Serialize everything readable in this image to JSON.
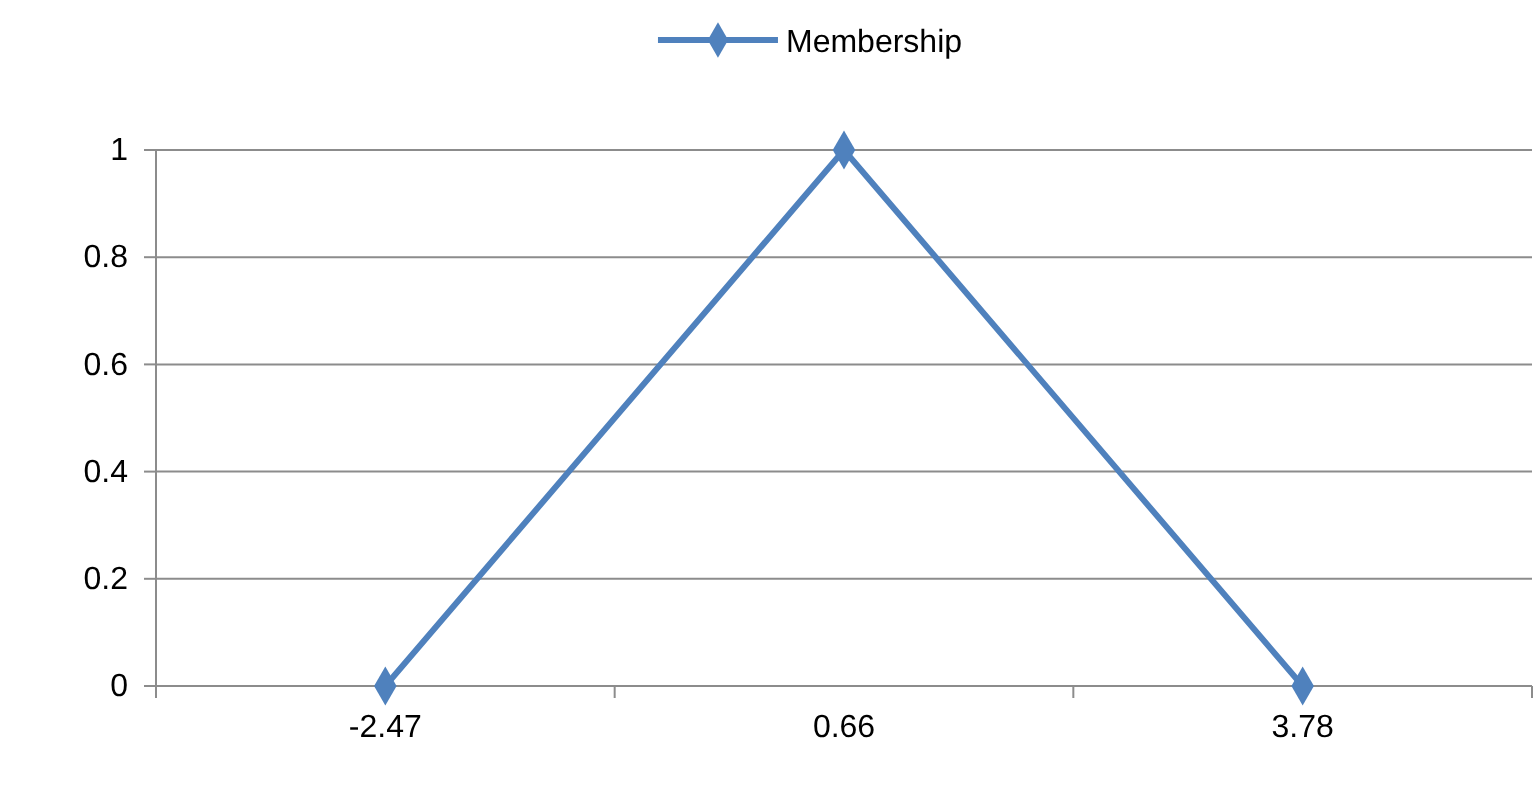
{
  "chart_data": {
    "type": "line",
    "categories": [
      "-2.47",
      "0.66",
      "3.78"
    ],
    "series": [
      {
        "name": "Membership",
        "color": "#4f81bd",
        "values": [
          0,
          1,
          0
        ]
      }
    ],
    "ylim": [
      0,
      1
    ],
    "yticks": [
      0,
      0.2,
      0.4,
      0.6,
      0.8,
      1
    ],
    "grid": "y",
    "legend": "top",
    "marker": "diamond",
    "line_style": "solid"
  }
}
